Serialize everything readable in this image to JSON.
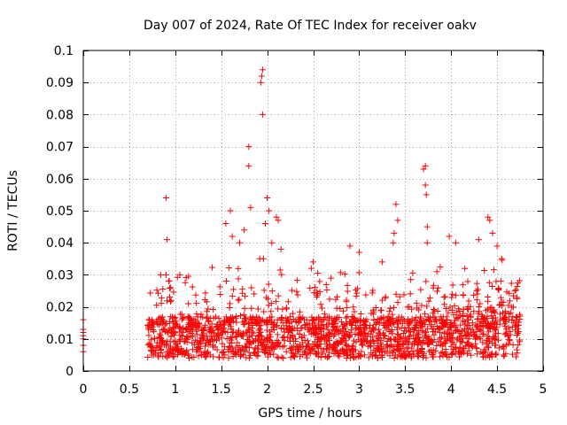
{
  "chart_data": {
    "type": "scatter",
    "title": "Day 007 of 2024, Rate Of TEC Index for receiver oakv",
    "xlabel": "GPS time / hours",
    "ylabel": "ROTI / TECUs",
    "xlim": [
      0,
      5
    ],
    "ylim": [
      0,
      0.1
    ],
    "grid": true,
    "marker": "+",
    "series_color": "#ff0000",
    "xticks": [
      0,
      0.5,
      1,
      1.5,
      2,
      2.5,
      3,
      3.5,
      4,
      4.5,
      5
    ],
    "xtick_labels": [
      "0",
      "0.5",
      "1",
      "1.5",
      "2",
      "2.5",
      "3",
      "3.5",
      "4",
      "4.5",
      "5"
    ],
    "yticks": [
      0,
      0.01,
      0.02,
      0.03,
      0.04,
      0.05,
      0.06,
      0.07,
      0.08,
      0.09,
      0.1
    ],
    "ytick_labels": [
      "0",
      "0.01",
      "0.02",
      "0.03",
      "0.04",
      "0.05",
      "0.06",
      "0.07",
      "0.08",
      "0.09",
      "0.1"
    ],
    "series": [
      {
        "name": "ROTI",
        "points": [
          [
            0.0,
            0.006
          ],
          [
            0.0,
            0.008
          ],
          [
            0.0,
            0.01
          ],
          [
            0.0,
            0.011
          ],
          [
            0.0,
            0.012
          ],
          [
            0.0,
            0.013
          ],
          [
            0.0,
            0.016
          ],
          [
            0.9,
            0.054
          ],
          [
            0.91,
            0.041
          ],
          [
            0.9,
            0.03
          ],
          [
            0.93,
            0.028
          ],
          [
            0.95,
            0.026
          ],
          [
            1.05,
            0.03
          ],
          [
            1.55,
            0.046
          ],
          [
            1.6,
            0.05
          ],
          [
            1.62,
            0.042
          ],
          [
            1.7,
            0.04
          ],
          [
            1.75,
            0.044
          ],
          [
            1.8,
            0.07
          ],
          [
            1.8,
            0.064
          ],
          [
            1.82,
            0.051
          ],
          [
            1.95,
            0.094
          ],
          [
            1.94,
            0.092
          ],
          [
            1.93,
            0.09
          ],
          [
            1.95,
            0.08
          ],
          [
            2.0,
            0.054
          ],
          [
            2.02,
            0.05
          ],
          [
            1.98,
            0.046
          ],
          [
            2.05,
            0.04
          ],
          [
            2.1,
            0.048
          ],
          [
            2.12,
            0.047
          ],
          [
            2.15,
            0.038
          ],
          [
            2.5,
            0.034
          ],
          [
            2.48,
            0.032
          ],
          [
            2.9,
            0.039
          ],
          [
            3.0,
            0.037
          ],
          [
            3.25,
            0.034
          ],
          [
            3.4,
            0.052
          ],
          [
            3.42,
            0.047
          ],
          [
            3.38,
            0.043
          ],
          [
            3.37,
            0.04
          ],
          [
            3.72,
            0.064
          ],
          [
            3.7,
            0.063
          ],
          [
            3.72,
            0.058
          ],
          [
            3.73,
            0.055
          ],
          [
            3.74,
            0.045
          ],
          [
            3.74,
            0.04
          ],
          [
            3.98,
            0.042
          ],
          [
            4.05,
            0.04
          ],
          [
            4.3,
            0.041
          ],
          [
            4.4,
            0.048
          ],
          [
            4.42,
            0.047
          ],
          [
            4.45,
            0.043
          ],
          [
            4.5,
            0.039
          ],
          [
            4.55,
            0.035
          ]
        ]
      }
    ]
  }
}
